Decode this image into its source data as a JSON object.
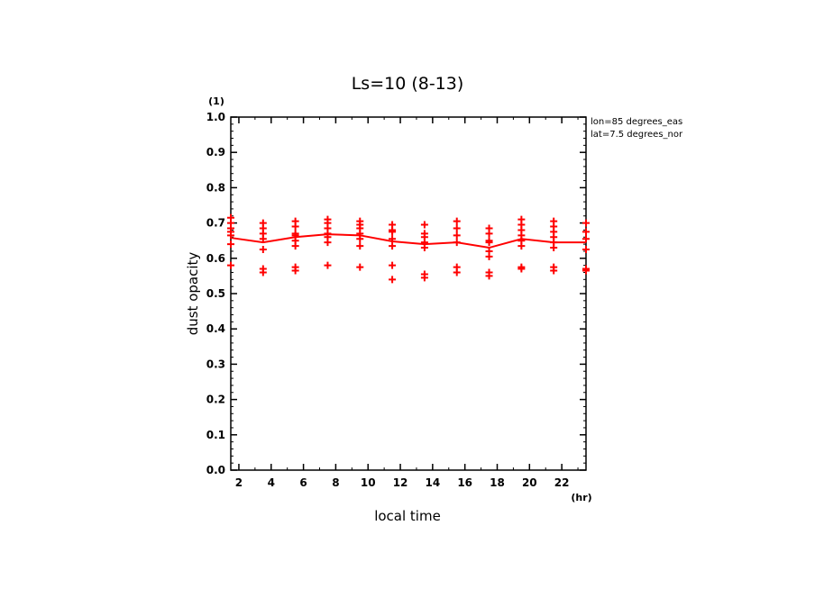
{
  "chart_data": {
    "type": "scatter",
    "title": "Ls=10 (8-13)",
    "xlabel": "local time",
    "ylabel": "dust opacity",
    "x_unit": "(hr)",
    "y_unit": "(1)",
    "xlim": [
      1.5,
      23.5
    ],
    "ylim": [
      0.0,
      1.0
    ],
    "x_ticks": [
      2,
      4,
      6,
      8,
      10,
      12,
      14,
      16,
      18,
      20,
      22
    ],
    "y_ticks": [
      0.0,
      0.1,
      0.2,
      0.3,
      0.4,
      0.5,
      0.6,
      0.7,
      0.8,
      0.9,
      1.0
    ],
    "annotations": [
      "lon=85 degrees_eas",
      "lat=7.5 degrees_nor"
    ],
    "color": "#ff0000",
    "series": [
      {
        "style": "line",
        "x": [
          1.5,
          3.5,
          5.5,
          7.5,
          9.5,
          11.5,
          13.5,
          15.5,
          17.5,
          19.5,
          21.5,
          23.5
        ],
        "y": [
          0.658,
          0.645,
          0.66,
          0.668,
          0.665,
          0.648,
          0.64,
          0.645,
          0.63,
          0.655,
          0.645,
          0.645
        ]
      },
      {
        "style": "plus",
        "points": [
          [
            1.5,
            0.715
          ],
          [
            1.5,
            0.7
          ],
          [
            1.5,
            0.685
          ],
          [
            1.5,
            0.675
          ],
          [
            1.5,
            0.665
          ],
          [
            1.5,
            0.64
          ],
          [
            1.5,
            0.58
          ],
          [
            3.5,
            0.7
          ],
          [
            3.5,
            0.685
          ],
          [
            3.5,
            0.67
          ],
          [
            3.5,
            0.655
          ],
          [
            3.5,
            0.625
          ],
          [
            3.5,
            0.57
          ],
          [
            3.5,
            0.56
          ],
          [
            5.5,
            0.705
          ],
          [
            5.5,
            0.69
          ],
          [
            5.5,
            0.67
          ],
          [
            5.5,
            0.665
          ],
          [
            5.5,
            0.65
          ],
          [
            5.5,
            0.635
          ],
          [
            5.5,
            0.575
          ],
          [
            5.5,
            0.565
          ],
          [
            7.5,
            0.71
          ],
          [
            7.5,
            0.7
          ],
          [
            7.5,
            0.685
          ],
          [
            7.5,
            0.67
          ],
          [
            7.5,
            0.66
          ],
          [
            7.5,
            0.645
          ],
          [
            7.5,
            0.58
          ],
          [
            9.5,
            0.705
          ],
          [
            9.5,
            0.695
          ],
          [
            9.5,
            0.685
          ],
          [
            9.5,
            0.67
          ],
          [
            9.5,
            0.655
          ],
          [
            9.5,
            0.635
          ],
          [
            9.5,
            0.575
          ],
          [
            11.5,
            0.695
          ],
          [
            11.5,
            0.68
          ],
          [
            11.5,
            0.675
          ],
          [
            11.5,
            0.655
          ],
          [
            11.5,
            0.635
          ],
          [
            11.5,
            0.58
          ],
          [
            11.5,
            0.54
          ],
          [
            13.5,
            0.695
          ],
          [
            13.5,
            0.67
          ],
          [
            13.5,
            0.66
          ],
          [
            13.5,
            0.645
          ],
          [
            13.5,
            0.63
          ],
          [
            13.5,
            0.555
          ],
          [
            13.5,
            0.545
          ],
          [
            15.5,
            0.705
          ],
          [
            15.5,
            0.685
          ],
          [
            15.5,
            0.665
          ],
          [
            15.5,
            0.645
          ],
          [
            15.5,
            0.575
          ],
          [
            15.5,
            0.56
          ],
          [
            17.5,
            0.685
          ],
          [
            17.5,
            0.67
          ],
          [
            17.5,
            0.65
          ],
          [
            17.5,
            0.645
          ],
          [
            17.5,
            0.62
          ],
          [
            17.5,
            0.605
          ],
          [
            17.5,
            0.56
          ],
          [
            17.5,
            0.55
          ],
          [
            19.5,
            0.71
          ],
          [
            19.5,
            0.695
          ],
          [
            19.5,
            0.68
          ],
          [
            19.5,
            0.665
          ],
          [
            19.5,
            0.65
          ],
          [
            19.5,
            0.635
          ],
          [
            19.5,
            0.575
          ],
          [
            19.5,
            0.57
          ],
          [
            21.5,
            0.705
          ],
          [
            21.5,
            0.69
          ],
          [
            21.5,
            0.675
          ],
          [
            21.5,
            0.66
          ],
          [
            21.5,
            0.645
          ],
          [
            21.5,
            0.63
          ],
          [
            21.5,
            0.575
          ],
          [
            21.5,
            0.565
          ],
          [
            23.5,
            0.7
          ],
          [
            23.5,
            0.675
          ],
          [
            23.5,
            0.655
          ],
          [
            23.5,
            0.625
          ],
          [
            23.5,
            0.57
          ],
          [
            23.5,
            0.565
          ]
        ]
      }
    ]
  }
}
